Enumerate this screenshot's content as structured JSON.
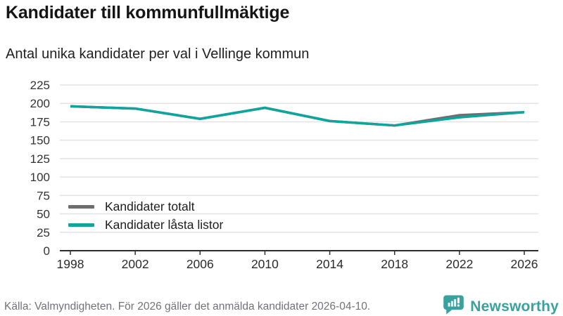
{
  "header": {
    "title": "Kandidater till kommunfullmäktige",
    "subtitle": "Antal unika kandidater per val i Vellinge kommun"
  },
  "chart_data": {
    "type": "line",
    "title": "Kandidater till kommunfullmäktige",
    "subtitle": "Antal unika kandidater per val i Vellinge kommun",
    "categories": [
      "1998",
      "2002",
      "2006",
      "2010",
      "2014",
      "2018",
      "2022",
      "2026"
    ],
    "series": [
      {
        "name": "Kandidater totalt",
        "color": "#6d6d72",
        "values": [
          196,
          193,
          179,
          194,
          176,
          170,
          184,
          188
        ]
      },
      {
        "name": "Kandidater låsta listor",
        "color": "#0ea59c",
        "values": [
          196,
          193,
          179,
          194,
          176,
          170,
          181,
          188
        ]
      }
    ],
    "xlabel": "",
    "ylabel": "",
    "ylim": [
      0,
      225
    ],
    "ytick_step": 25,
    "yticks": [
      0,
      25,
      50,
      75,
      100,
      125,
      150,
      175,
      200,
      225
    ],
    "grid": true,
    "legend_position": "inside-bottom-left",
    "axis_color": "#2d2d2d",
    "grid_color": "#e3e3e3"
  },
  "footer": {
    "source": "Källa: Valmyndigheten. För 2026 gäller det anmälda kandidater 2026-04-10.",
    "brand": "Newsworthy",
    "brand_color": "#3aa19e",
    "brand_icon": "speech-bubble-bar-chart"
  }
}
